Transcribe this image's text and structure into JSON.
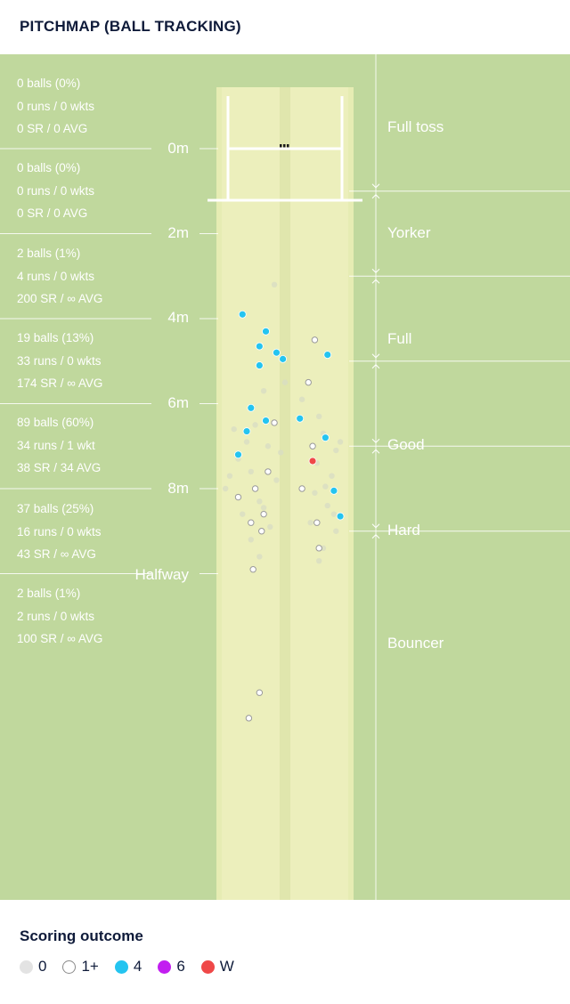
{
  "title": "PITCHMAP (BALL TRACKING)",
  "colors": {
    "outfield": "#c0d89d",
    "pitch": "#e6ecb3",
    "outcome_0": "#e3e3e3",
    "outcome_1plus": "#ffffff",
    "outcome_4": "#24c4f0",
    "outcome_6": "#c21ef0",
    "outcome_W": "#ef4848"
  },
  "distance_markers": [
    "0m",
    "2m",
    "4m",
    "6m",
    "8m",
    "Halfway"
  ],
  "zones": [
    {
      "name": "Full toss",
      "line1": "0 balls (0%)",
      "line2": "0 runs / 0 wkts",
      "line3": "0 SR / 0 AVG"
    },
    {
      "name": "Yorker",
      "line1": "0 balls (0%)",
      "line2": "0 runs / 0 wkts",
      "line3": "0 SR / 0 AVG"
    },
    {
      "name": "Full",
      "line1": "2 balls (1%)",
      "line2": "4 runs / 0 wkts",
      "line3": "200 SR / ∞ AVG"
    },
    {
      "name": "Good",
      "line1": "19 balls (13%)",
      "line2": "33 runs / 0 wkts",
      "line3": "174 SR / ∞ AVG"
    },
    {
      "name": "Hard",
      "line1": "89 balls (60%)",
      "line2": "34 runs / 1 wkt",
      "line3": "38 SR / 34 AVG"
    },
    {
      "name": "Bouncer",
      "line1": "37 balls (25%)",
      "line2": "16 runs / 0 wkts",
      "line3": "43 SR / ∞ AVG"
    },
    {
      "name": "",
      "line1": "2 balls (1%)",
      "line2": "2 runs / 0 wkts",
      "line3": "100 SR / ∞ AVG"
    }
  ],
  "legend": {
    "title": "Scoring outcome",
    "items": [
      {
        "label": "0",
        "key": "0"
      },
      {
        "label": "1+",
        "key": "1+"
      },
      {
        "label": "4",
        "key": "4"
      },
      {
        "label": "6",
        "key": "6"
      },
      {
        "label": "W",
        "key": "W"
      }
    ]
  },
  "chart_data": {
    "type": "scatter",
    "title": "PITCHMAP (BALL TRACKING)",
    "xlabel": "",
    "ylabel": "",
    "x_units": "line offset (m, relative to middle stump)",
    "y_units": "length from batter's stumps (m)",
    "series": [
      {
        "name": "0",
        "points": [
          [
            -0.25,
            3.2
          ],
          [
            0.0,
            5.5
          ],
          [
            -0.5,
            5.7
          ],
          [
            0.4,
            5.9
          ],
          [
            0.8,
            6.3
          ],
          [
            -0.7,
            6.5
          ],
          [
            -1.2,
            6.6
          ],
          [
            -0.9,
            6.9
          ],
          [
            0.9,
            6.7
          ],
          [
            1.3,
            6.9
          ],
          [
            -0.4,
            7.0
          ],
          [
            -1.1,
            7.3
          ],
          [
            0.75,
            7.4
          ],
          [
            -0.8,
            7.6
          ],
          [
            -0.2,
            7.8
          ],
          [
            1.1,
            7.7
          ],
          [
            -1.4,
            8.0
          ],
          [
            0.7,
            8.1
          ],
          [
            -0.6,
            8.3
          ],
          [
            1.0,
            8.4
          ],
          [
            -1.0,
            8.6
          ],
          [
            0.6,
            8.8
          ],
          [
            -0.35,
            8.9
          ],
          [
            1.2,
            9.0
          ],
          [
            -0.8,
            9.2
          ],
          [
            0.9,
            9.4
          ],
          [
            -0.6,
            9.6
          ],
          [
            0.8,
            9.7
          ],
          [
            -0.1,
            7.15
          ],
          [
            1.2,
            7.1
          ],
          [
            -1.3,
            7.7
          ],
          [
            0.95,
            7.95
          ],
          [
            -0.5,
            8.45
          ],
          [
            1.15,
            8.6
          ]
        ]
      },
      {
        "name": "1+",
        "points": [
          [
            0.7,
            4.5
          ],
          [
            0.55,
            5.5
          ],
          [
            -0.25,
            6.45
          ],
          [
            0.65,
            7.0
          ],
          [
            -0.4,
            7.6
          ],
          [
            -0.7,
            8.0
          ],
          [
            -1.1,
            8.2
          ],
          [
            -0.5,
            8.6
          ],
          [
            -0.8,
            8.8
          ],
          [
            0.75,
            8.8
          ],
          [
            -0.55,
            9.0
          ],
          [
            0.8,
            9.4
          ],
          [
            0.4,
            8.0
          ],
          [
            -0.75,
            9.9
          ],
          [
            -0.6,
            12.8
          ],
          [
            -0.85,
            13.4
          ]
        ]
      },
      {
        "name": "4",
        "points": [
          [
            -1.0,
            3.9
          ],
          [
            -0.45,
            4.3
          ],
          [
            -0.6,
            4.65
          ],
          [
            -0.2,
            4.8
          ],
          [
            -0.05,
            4.95
          ],
          [
            1.0,
            4.85
          ],
          [
            -0.6,
            5.1
          ],
          [
            -0.8,
            6.1
          ],
          [
            0.35,
            6.35
          ],
          [
            -0.45,
            6.4
          ],
          [
            -0.9,
            6.65
          ],
          [
            0.95,
            6.8
          ],
          [
            -1.1,
            7.2
          ],
          [
            1.15,
            8.05
          ],
          [
            1.3,
            8.65
          ]
        ]
      },
      {
        "name": "6",
        "points": []
      },
      {
        "name": "W",
        "points": [
          [
            0.65,
            7.35
          ]
        ]
      }
    ],
    "zone_boundaries_m": [
      1.0,
      3.0,
      5.0,
      7.0,
      9.0
    ],
    "zones": [
      "Full toss",
      "Yorker",
      "Full",
      "Good",
      "Hard",
      "Bouncer"
    ],
    "ylim": [
      -1.4,
      18.4
    ],
    "xlim": [
      -4.4,
      4.4
    ]
  }
}
